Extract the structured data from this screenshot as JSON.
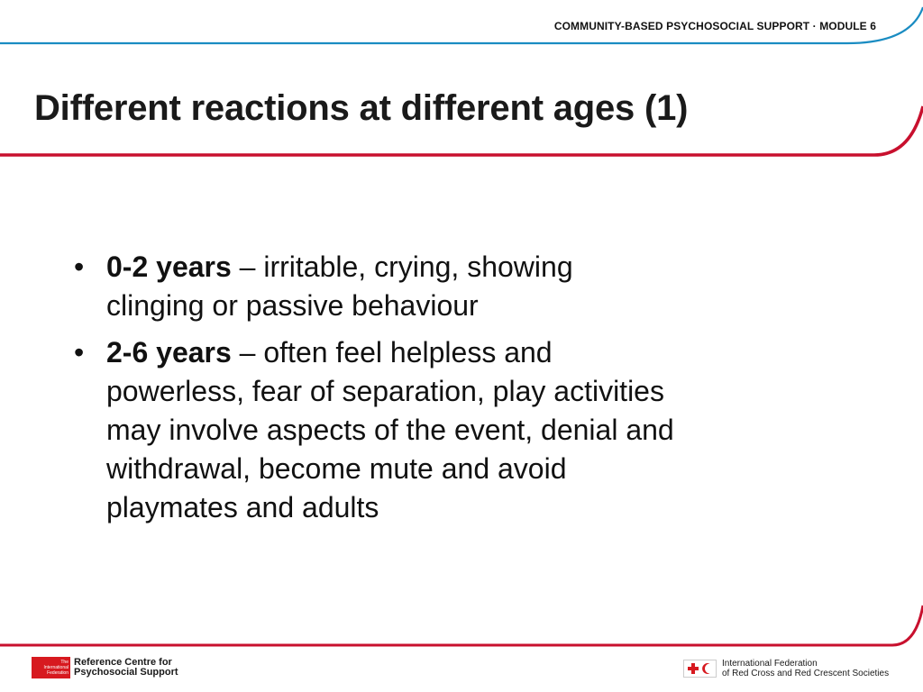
{
  "header": {
    "running_head": "COMMUNITY-BASED PSYCHOSOCIAL SUPPORT · MODULE 6"
  },
  "slide": {
    "title": "Different reactions at different ages (1)",
    "bullets": [
      {
        "lead": "0-2 years",
        "line1_rest": " – irritable, crying, showing",
        "lines": [
          "clinging or passive behaviour"
        ]
      },
      {
        "lead": "2-6 years",
        "line1_rest": " – often feel helpless and",
        "lines": [
          "powerless, fear of separation, play activities",
          "may involve aspects of the event, denial and",
          "withdrawal, become mute and avoid",
          "playmates and adults"
        ]
      }
    ],
    "bullet_glyph": "•"
  },
  "footer": {
    "left_logo_small": [
      "The",
      "International",
      "Federation"
    ],
    "left_logo_name": [
      "Reference Centre for",
      "Psychosocial Support"
    ],
    "right_logo_name": [
      "International Federation",
      "of Red Cross and Red Crescent Societies"
    ]
  },
  "colors": {
    "accent_red": "#c8102e",
    "accent_blue": "#1a8cc2",
    "text": "#111111"
  }
}
